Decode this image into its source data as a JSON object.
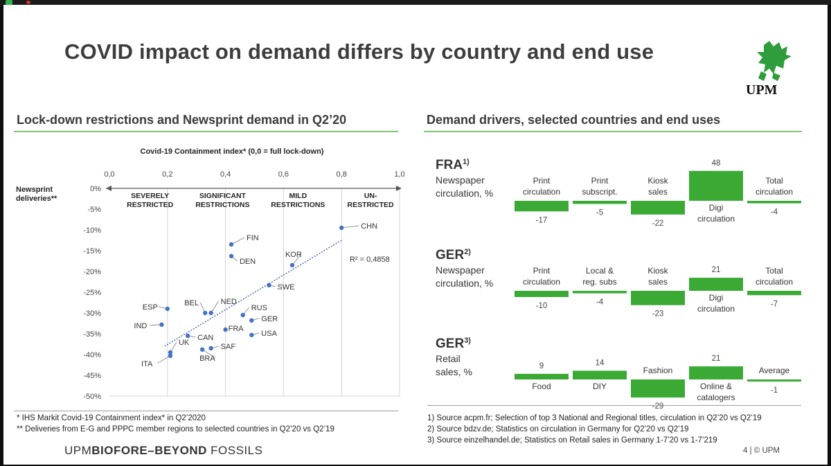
{
  "title": "COVID impact on demand differs by country and end use",
  "logo": {
    "text": "UPM"
  },
  "left_section_title": "Lock-down restrictions and Newsprint demand in Q2’20",
  "right_section_title": "Demand drivers, selected countries and end uses",
  "colors": {
    "accent": "#3aaa35",
    "line": "#7dc66f",
    "dot": "#4472c4",
    "trend": "#2e5aa8"
  },
  "chart_data": [
    {
      "type": "scatter",
      "title": "Covid-19 Containment index* (0,0 = full lock-down)",
      "ylabel": "Newsprint deliveries**",
      "xlim": [
        0.0,
        1.0
      ],
      "ylim": [
        -50,
        0
      ],
      "x_ticks": [
        "0,0",
        "0,2",
        "0,4",
        "0,6",
        "0,8",
        "1,0"
      ],
      "y_ticks": [
        "0%",
        "-5%",
        "-10%",
        "-15%",
        "-20%",
        "-25%",
        "-30%",
        "-35%",
        "-40%",
        "-45%",
        "-50%"
      ],
      "categories_bands": [
        "SEVERELY RESTRICTED",
        "SIGNIFICANT RESTRICTIONS",
        "MILD RESTRICTIONS",
        "UN-RESTRICTED"
      ],
      "r2_label": "R² = 0,4858",
      "points": [
        {
          "label": "CHN",
          "x": 0.8,
          "y": -9.5
        },
        {
          "label": "FIN",
          "x": 0.42,
          "y": -13.5
        },
        {
          "label": "DEN",
          "x": 0.42,
          "y": -16.3
        },
        {
          "label": "KOR",
          "x": 0.63,
          "y": -18.5
        },
        {
          "label": "SWE",
          "x": 0.55,
          "y": -23.3
        },
        {
          "label": "NED",
          "x": 0.35,
          "y": -30.0
        },
        {
          "label": "BEL",
          "x": 0.33,
          "y": -30.0
        },
        {
          "label": "ESP",
          "x": 0.2,
          "y": -29.0
        },
        {
          "label": "RUS",
          "x": 0.46,
          "y": -30.5
        },
        {
          "label": "GER",
          "x": 0.49,
          "y": -31.8
        },
        {
          "label": "FRA",
          "x": 0.4,
          "y": -34.0
        },
        {
          "label": "USA",
          "x": 0.49,
          "y": -35.3
        },
        {
          "label": "IND",
          "x": 0.18,
          "y": -32.8
        },
        {
          "label": "CAN",
          "x": 0.27,
          "y": -35.5
        },
        {
          "label": "SAF",
          "x": 0.35,
          "y": -38.5
        },
        {
          "label": "BRA",
          "x": 0.32,
          "y": -38.8
        },
        {
          "label": "UK",
          "x": 0.21,
          "y": -39.5
        },
        {
          "label": "ITA",
          "x": 0.21,
          "y": -40.3
        }
      ],
      "trend": {
        "x": [
          0.19,
          0.8
        ],
        "y": [
          -38.0,
          -12.5
        ]
      }
    },
    {
      "type": "bar",
      "group": "FRA",
      "superscript": "1)",
      "subtitle": "Newspaper circulation, %",
      "categories": [
        "Print circulation",
        "Print subscript.",
        "Kiosk sales",
        "Digi circulation",
        "Total circulation"
      ],
      "values": [
        -17,
        -5,
        -22,
        48,
        -4
      ]
    },
    {
      "type": "bar",
      "group": "GER",
      "superscript": "2)",
      "subtitle": "Newspaper circulation, %",
      "categories": [
        "Print circulation",
        "Local & reg. subs",
        "Kiosk sales",
        "Digi circulation",
        "Total circulation"
      ],
      "values": [
        -10,
        -4,
        -23,
        21,
        -7
      ]
    },
    {
      "type": "bar",
      "group": "GER",
      "superscript": "3)",
      "subtitle": "Retail sales, %",
      "categories": [
        "Food",
        "DIY",
        "Fashion",
        "Online & catalogers",
        "Average"
      ],
      "values": [
        9,
        14,
        -29,
        21,
        -1
      ]
    }
  ],
  "footnotes_left": [
    "* IHS Markit Covid-19 Containment index* in Q2’2020",
    "** Deliveries from E-G and PPPC member regions to selected countries in Q2’20 vs Q2’19"
  ],
  "footnotes_right": [
    "1) Source acpm.fr; Selection of top 3 National and Regional titles, circulation in Q2’20 vs Q2’19",
    "2) Source bdzv.de; Statistics on circulation in Germany for Q2’20 vs Q2’19",
    "3) Source einzelhandel.de; Statistics on Retail sales in Germany 1-7’20 vs 1-7’219"
  ],
  "brand": {
    "part1": "UPM",
    "part2": "BIOFORE",
    "part3": "–BEYOND",
    "part4": " FOSSILS"
  },
  "page": "4  |  © UPM"
}
